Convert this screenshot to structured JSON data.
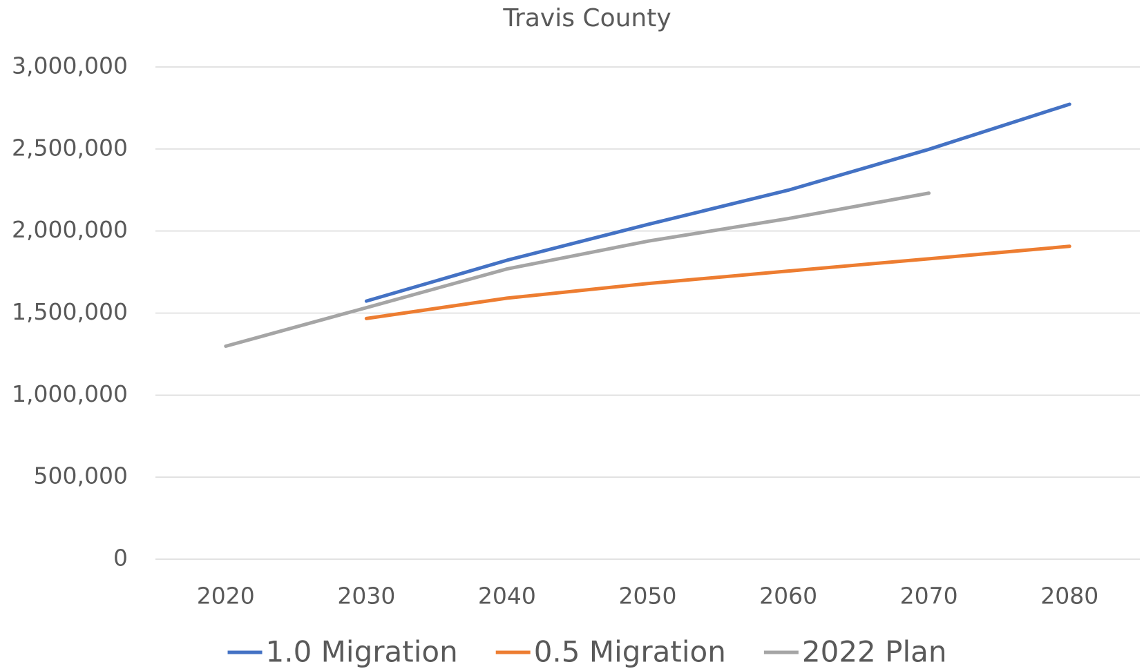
{
  "chart_data": {
    "type": "line",
    "title": "Travis County",
    "categories": [
      "2020",
      "2030",
      "2040",
      "2050",
      "2060",
      "2070",
      "2080"
    ],
    "series": [
      {
        "name": "1.0 Migration",
        "color": "#4472c4",
        "values": [
          null,
          1573000,
          1822000,
          2040000,
          2249000,
          2498000,
          2773000
        ]
      },
      {
        "name": "0.5 Migration",
        "color": "#ed7d31",
        "values": [
          null,
          1467000,
          1591000,
          1680000,
          1756000,
          1831000,
          1907000
        ]
      },
      {
        "name": "2022 Plan",
        "color": "#a5a5a5",
        "values": [
          1298000,
          1533000,
          1769000,
          1938000,
          2076000,
          2231000,
          null
        ]
      }
    ],
    "ylim": [
      0,
      3000000
    ],
    "yticks": [
      0,
      {
        "value": 500000,
        "label": "500,000"
      },
      {
        "value": 1000000,
        "label": "1,000,000"
      },
      {
        "value": 1500000,
        "label": "1,500,000"
      },
      {
        "value": 2000000,
        "label": "2,000,000"
      },
      {
        "value": 2500000,
        "label": "2,500,000"
      },
      {
        "value": 3000000,
        "label": "3,000,000"
      }
    ],
    "grid": true,
    "legend": "bottom"
  }
}
